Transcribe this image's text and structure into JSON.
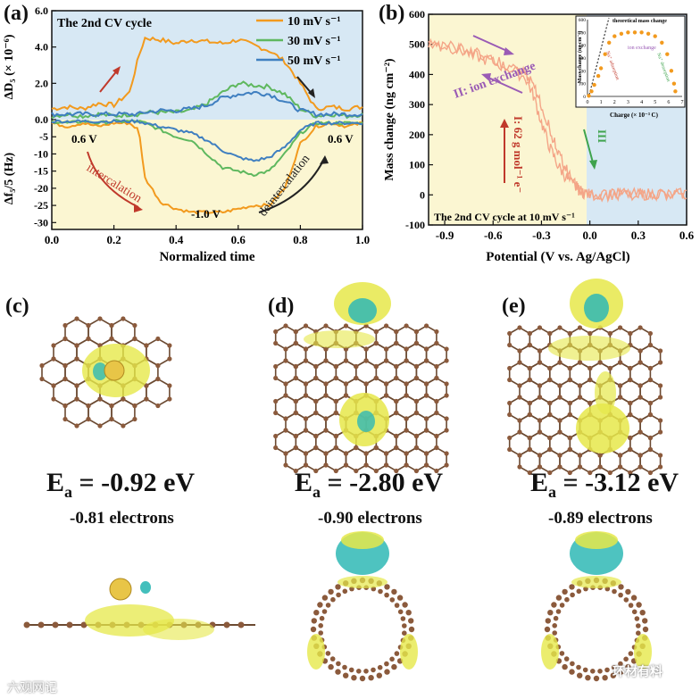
{
  "panel_labels": {
    "a": "(a)",
    "b": "(b)",
    "c": "(c)",
    "d": "(d)",
    "e": "(e)"
  },
  "panel_a": {
    "inner_title": "The 2nd CV cycle",
    "ylabel_top": "ΔD₅ (× 10⁻⁶)",
    "ylabel_bottom": "Δf₅/5 (Hz)",
    "xlabel": "Normalized time",
    "annotations": {
      "start_v": "0.6 V",
      "end_v": "0.6 V",
      "min_v": "-1.0 V",
      "intercalation": "intercalation",
      "deintercalation": "deintercalation"
    },
    "colors": {
      "s10": "#F29A1E",
      "s30": "#5FB85F",
      "s50": "#3F7FC0",
      "top_bg": "#D7E8F4",
      "bottom_bg": "#FBF6D2",
      "arrow_red": "#C0392B",
      "arrow_dark": "#222222"
    }
  },
  "panel_b": {
    "xlabel": "Potential (V vs. Ag/AgCl)",
    "ylabel": "Mass change (ng cm⁻²)",
    "inner_title": "The 2nd CV cycle at 10 mV s⁻¹",
    "label_ion_exchange": "II: ion exchange",
    "label_I": "I: 62 g mol⁻¹ e⁻",
    "label_III": "III",
    "inset": {
      "ylabel": "Mass change (ng cm⁻²)",
      "xlabel": "Charge (× 10⁻³ C)",
      "theory_label": "theoretical mass change",
      "ion_exchange": "ion exchange",
      "na_adsorption": "Na⁺ adsorption",
      "na_desorption": "Na⁺ desorption",
      "yticks": [
        "0",
        "100",
        "200",
        "300",
        "400",
        "500",
        "600"
      ],
      "xticks": [
        "0",
        "1",
        "2",
        "3",
        "4",
        "5",
        "6",
        "7"
      ]
    },
    "colors": {
      "curve": "#F4A587",
      "bg_left": "#FBF6D2",
      "bg_right": "#D7E8F4",
      "arrow_purple": "#9A5BB5",
      "arrow_red": "#C0392B",
      "arrow_green": "#3FA34D"
    }
  },
  "chart_data": [
    {
      "type": "line",
      "panel": "a",
      "title": "The 2nd CV cycle",
      "xlabel": "Normalized time",
      "ylabel": "ΔD₅ (× 10⁻⁶) / Δf₅/5 (Hz)",
      "xlim": [
        0,
        1
      ],
      "ylim": [
        -32,
        6
      ],
      "xticks": [
        "0.0",
        "0.2",
        "0.4",
        "0.6",
        "0.8",
        "1.0"
      ],
      "yticks_top": [
        "0.0",
        "2.0",
        "4.0",
        "6.0"
      ],
      "yticks_bottom": [
        "-30",
        "-25",
        "-20",
        "-15",
        "-10",
        "-5",
        "0"
      ],
      "legend": "top-right",
      "x": [
        0.0,
        0.05,
        0.1,
        0.15,
        0.2,
        0.25,
        0.28,
        0.3,
        0.35,
        0.4,
        0.45,
        0.5,
        0.55,
        0.6,
        0.65,
        0.7,
        0.75,
        0.8,
        0.85,
        0.9,
        0.95,
        1.0
      ],
      "series": [
        {
          "name": "10 mV s⁻¹",
          "kind": "dissipation",
          "values": [
            0.6,
            0.7,
            0.6,
            0.9,
            0.8,
            1.5,
            3.5,
            4.5,
            4.4,
            4.2,
            4.4,
            4.3,
            4.2,
            4.4,
            4.1,
            3.8,
            3.2,
            2.0,
            0.6,
            0.7,
            0.6,
            0.7
          ]
        },
        {
          "name": "30 mV s⁻¹",
          "kind": "dissipation",
          "values": [
            0.2,
            0.3,
            0.2,
            0.3,
            0.2,
            0.3,
            0.3,
            0.4,
            0.4,
            0.4,
            0.5,
            0.9,
            1.5,
            2.0,
            1.9,
            1.8,
            1.4,
            0.6,
            0.2,
            0.3,
            0.2,
            0.3
          ]
        },
        {
          "name": "50 mV s⁻¹",
          "kind": "dissipation",
          "values": [
            0.3,
            0.3,
            0.3,
            0.3,
            0.3,
            0.3,
            0.3,
            0.4,
            0.5,
            0.5,
            0.6,
            0.8,
            1.2,
            1.4,
            1.5,
            1.4,
            1.0,
            0.5,
            0.3,
            0.3,
            0.3,
            0.3
          ]
        },
        {
          "name": "10 mV s⁻¹ (Δf)",
          "kind": "frequency",
          "values": [
            -1,
            -2,
            -1,
            -2,
            -1,
            -1,
            -3,
            -17,
            -24,
            -26,
            -27,
            -27,
            -27,
            -26,
            -25,
            -25,
            -20,
            -7,
            -2,
            -1,
            -2,
            -1
          ]
        },
        {
          "name": "30 mV s⁻¹ (Δf)",
          "kind": "frequency",
          "values": [
            -0.5,
            -1,
            -0.5,
            -1,
            -0.5,
            -0.5,
            -0.5,
            -1,
            -3,
            -5,
            -6,
            -10,
            -14,
            -15,
            -16,
            -15,
            -10,
            -4,
            -1,
            -1,
            -1,
            -1
          ]
        },
        {
          "name": "50 mV s⁻¹ (Δf)",
          "kind": "frequency",
          "values": [
            -0.5,
            -0.5,
            -0.5,
            -0.5,
            -0.5,
            -0.5,
            -0.5,
            -1,
            -2,
            -3,
            -4,
            -6,
            -9,
            -11,
            -12,
            -11,
            -8,
            -3,
            -1,
            -1,
            -1,
            -1
          ]
        }
      ]
    },
    {
      "type": "line",
      "panel": "b",
      "title": "The 2nd CV cycle at 10 mV s⁻¹",
      "xlabel": "Potential (V vs. Ag/AgCl)",
      "ylabel": "Mass change (ng cm⁻²)",
      "xlim": [
        -1.0,
        0.6
      ],
      "ylim": [
        -100,
        600
      ],
      "xticks": [
        "-0.9",
        "-0.6",
        "-0.3",
        "0.0",
        "0.3",
        "0.6"
      ],
      "yticks": [
        "-100",
        "0",
        "100",
        "200",
        "300",
        "400",
        "500",
        "600"
      ],
      "series": [
        {
          "name": "forward",
          "x": [
            -1.0,
            -0.9,
            -0.8,
            -0.7,
            -0.6,
            -0.5,
            -0.4,
            -0.35,
            -0.3,
            -0.25,
            -0.2,
            -0.15,
            -0.1,
            -0.05,
            0.0,
            0.1,
            0.2,
            0.3,
            0.4,
            0.5,
            0.6
          ],
          "y": [
            500,
            495,
            480,
            460,
            440,
            420,
            390,
            330,
            240,
            160,
            100,
            60,
            30,
            10,
            0,
            0,
            5,
            0,
            5,
            0,
            5
          ]
        },
        {
          "name": "reverse",
          "x": [
            0.6,
            0.5,
            0.4,
            0.3,
            0.2,
            0.1,
            0.0,
            -0.05,
            -0.1,
            -0.15,
            -0.2,
            -0.25,
            -0.3,
            -0.35,
            -0.4,
            -0.5,
            -0.6,
            -0.7,
            -0.8,
            -0.9,
            -1.0
          ],
          "y": [
            0,
            5,
            0,
            5,
            0,
            0,
            0,
            10,
            40,
            90,
            150,
            220,
            300,
            360,
            400,
            430,
            450,
            470,
            485,
            495,
            500
          ]
        }
      ]
    }
  ],
  "structures": {
    "c": {
      "ea_base": "E",
      "ea_sub": "a",
      "ea_value": " = -0.92 eV",
      "electrons": "-0.81 electrons"
    },
    "d": {
      "ea_base": "E",
      "ea_sub": "a",
      "ea_value": " = -2.80 eV",
      "electrons": "-0.90 electrons"
    },
    "e": {
      "ea_base": "E",
      "ea_sub": "a",
      "ea_value": " = -3.12 eV",
      "electrons": "-0.89 electrons"
    },
    "colors": {
      "carbon": "#8B5A3C",
      "bond": "#6B4A32",
      "na": "#E8C547",
      "iso_yellow": "#E6E84A",
      "iso_cyan": "#2FB8B5"
    }
  },
  "watermarks": {
    "left": "六观网记",
    "right": "环材有料"
  }
}
